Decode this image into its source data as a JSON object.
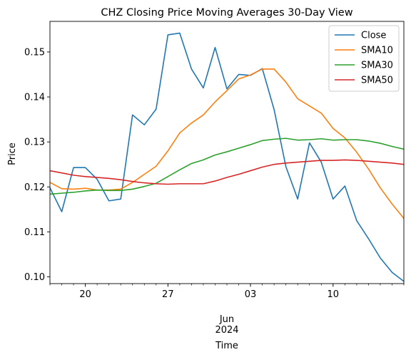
{
  "chart_data": {
    "type": "line",
    "title": "CHZ Closing Price Moving Averages 30-Day View",
    "xlabel": "Time",
    "ylabel": "Price",
    "xlim": [
      "2024-05-17",
      "2024-06-16"
    ],
    "ylim": [
      0.0985,
      0.1568
    ],
    "grid": false,
    "legend_position": "top-right",
    "x_major_ticks": [
      {
        "date": "2024-05-20",
        "label": "20"
      },
      {
        "date": "2024-05-27",
        "label": "27"
      },
      {
        "date": "2024-06-03",
        "label": "03"
      },
      {
        "date": "2024-06-10",
        "label": "10"
      }
    ],
    "x_month_label": {
      "date": "2024-06-01",
      "line1": "Jun",
      "line2": "2024"
    },
    "y_ticks": [
      {
        "value": 0.1,
        "label": "0.10"
      },
      {
        "value": 0.11,
        "label": "0.11"
      },
      {
        "value": 0.12,
        "label": "0.12"
      },
      {
        "value": 0.13,
        "label": "0.13"
      },
      {
        "value": 0.14,
        "label": "0.14"
      },
      {
        "value": 0.15,
        "label": "0.15"
      }
    ],
    "x": [
      "2024-05-17",
      "2024-05-18",
      "2024-05-19",
      "2024-05-20",
      "2024-05-21",
      "2024-05-22",
      "2024-05-23",
      "2024-05-24",
      "2024-05-25",
      "2024-05-26",
      "2024-05-27",
      "2024-05-28",
      "2024-05-29",
      "2024-05-30",
      "2024-05-31",
      "2024-06-01",
      "2024-06-02",
      "2024-06-03",
      "2024-06-04",
      "2024-06-05",
      "2024-06-06",
      "2024-06-07",
      "2024-06-08",
      "2024-06-09",
      "2024-06-10",
      "2024-06-11",
      "2024-06-12",
      "2024-06-13",
      "2024-06-14",
      "2024-06-15",
      "2024-06-16"
    ],
    "series": [
      {
        "name": "Close",
        "color": "#1f77b4",
        "values": [
          0.1198,
          0.1145,
          0.1243,
          0.1243,
          0.1217,
          0.1169,
          0.1173,
          0.136,
          0.1338,
          0.1373,
          0.1538,
          0.1542,
          0.1462,
          0.142,
          0.151,
          0.1418,
          0.145,
          0.1448,
          0.1463,
          0.1372,
          0.1245,
          0.1173,
          0.1298,
          0.1255,
          0.1173,
          0.1202,
          0.1125,
          0.1085,
          0.1042,
          0.101,
          0.099
        ]
      },
      {
        "name": "SMA10",
        "color": "#ff7f0e",
        "values": [
          0.121,
          0.1196,
          0.1195,
          0.1197,
          0.1193,
          0.1193,
          0.1195,
          0.121,
          0.1228,
          0.1246,
          0.128,
          0.132,
          0.1342,
          0.136,
          0.1389,
          0.1414,
          0.144,
          0.1449,
          0.1462,
          0.1462,
          0.1433,
          0.1396,
          0.138,
          0.1364,
          0.133,
          0.1309,
          0.1277,
          0.124,
          0.1198,
          0.1162,
          0.113
        ]
      },
      {
        "name": "SMA30",
        "color": "#2ca02c",
        "values": [
          0.1184,
          0.1186,
          0.1188,
          0.1191,
          0.1193,
          0.1192,
          0.1192,
          0.1195,
          0.1201,
          0.1208,
          0.1223,
          0.1238,
          0.1252,
          0.126,
          0.1271,
          0.1278,
          0.1286,
          0.1294,
          0.1303,
          0.1306,
          0.1308,
          0.1304,
          0.1305,
          0.1307,
          0.1304,
          0.1305,
          0.1305,
          0.1302,
          0.1297,
          0.129,
          0.1284
        ]
      },
      {
        "name": "SMA50",
        "color": "#d62728",
        "values": [
          0.1236,
          0.1231,
          0.1226,
          0.1223,
          0.1221,
          0.1219,
          0.1216,
          0.1212,
          0.1209,
          0.1207,
          0.1206,
          0.1207,
          0.1207,
          0.1207,
          0.1213,
          0.1221,
          0.1228,
          0.1236,
          0.1244,
          0.125,
          0.1253,
          0.1255,
          0.1257,
          0.1259,
          0.1259,
          0.126,
          0.1259,
          0.1257,
          0.1255,
          0.1253,
          0.125
        ]
      }
    ]
  }
}
